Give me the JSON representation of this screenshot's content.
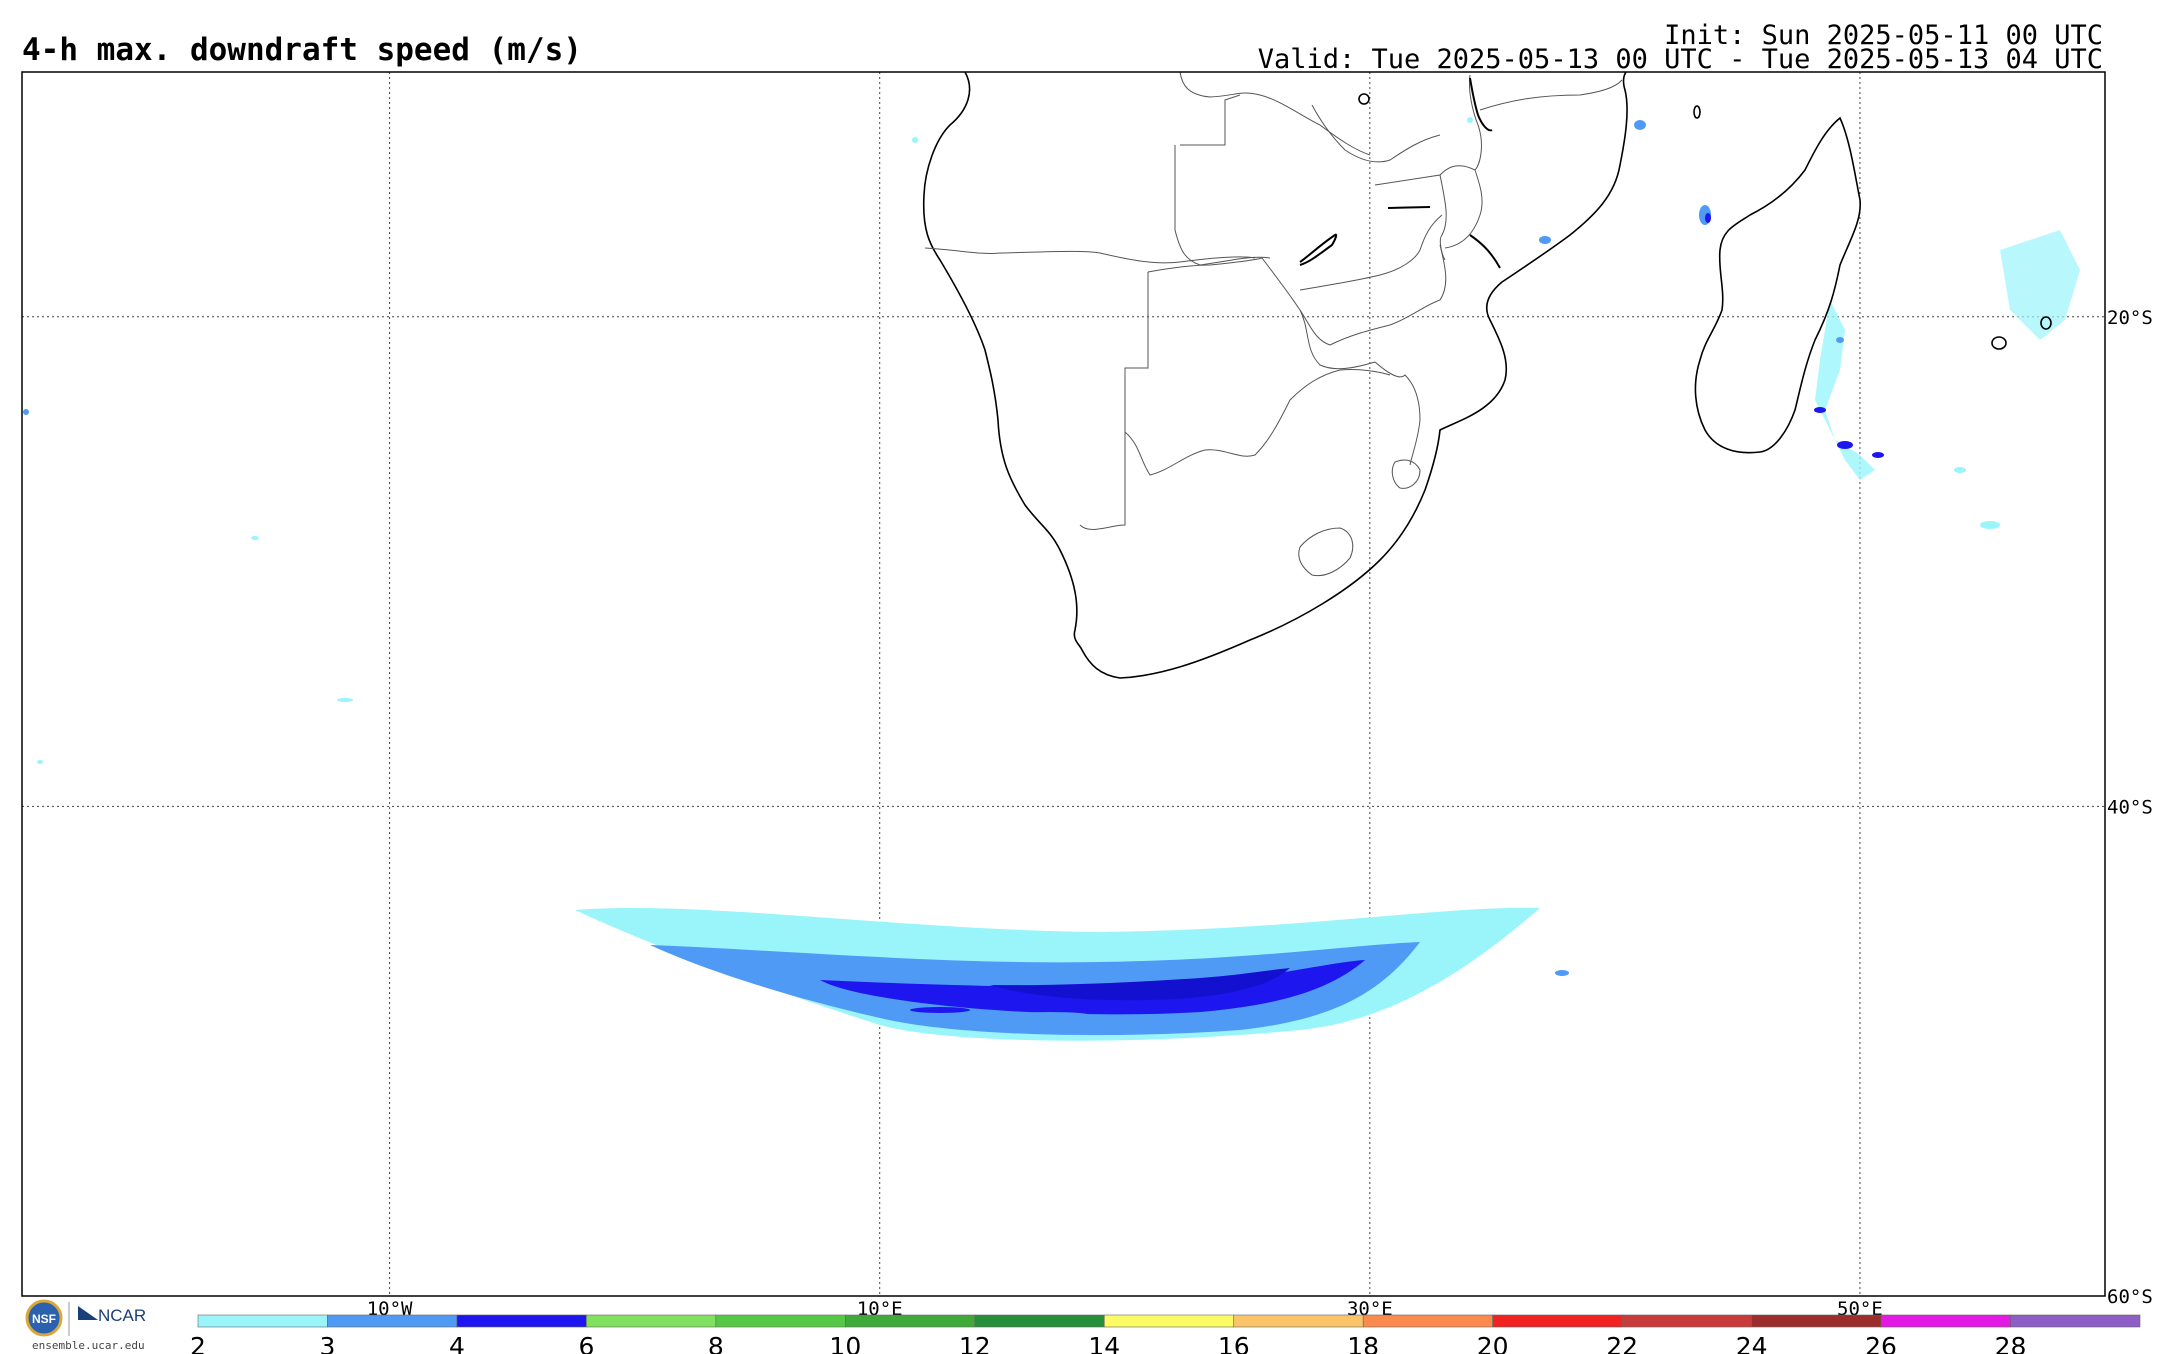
{
  "header": {
    "title": "4-h max. downdraft speed (m/s)",
    "init": "Init: Sun 2025-05-11 00 UTC",
    "valid": "Valid: Tue 2025-05-13 00 UTC - Tue 2025-05-13 04 UTC"
  },
  "map": {
    "projection": "cylindrical equidistant",
    "lon_range": [
      -25,
      60
    ],
    "lat_range": [
      -60,
      -10
    ],
    "lon_labels": [
      {
        "lon": -10,
        "text": "10°W"
      },
      {
        "lon": 10,
        "text": "10°E"
      },
      {
        "lon": 30,
        "text": "30°E"
      },
      {
        "lon": 50,
        "text": "50°E"
      }
    ],
    "lat_labels": [
      {
        "lat": -20,
        "text": "20°S"
      },
      {
        "lat": -40,
        "text": "40°S"
      },
      {
        "lat": -60,
        "text": "60°S"
      }
    ],
    "grid": "dotted"
  },
  "colorbar": {
    "ticks": [
      "2",
      "3",
      "4",
      "6",
      "8",
      "10",
      "12",
      "14",
      "16",
      "18",
      "20",
      "22",
      "24",
      "26",
      "28"
    ],
    "colors": [
      "#9af5fb",
      "#4f9af5",
      "#1d16ee",
      "#80e060",
      "#55c845",
      "#3eaa3a",
      "#258f3c",
      "#fbfb66",
      "#fbc468",
      "#fb8a4e",
      "#f02222",
      "#c83b3b",
      "#9c2d2d",
      "#e31ae3",
      "#8e5ec7"
    ]
  },
  "logos": {
    "nsf": "NSF",
    "ncar": "NCAR",
    "url": "ensemble.ucar.edu"
  }
}
